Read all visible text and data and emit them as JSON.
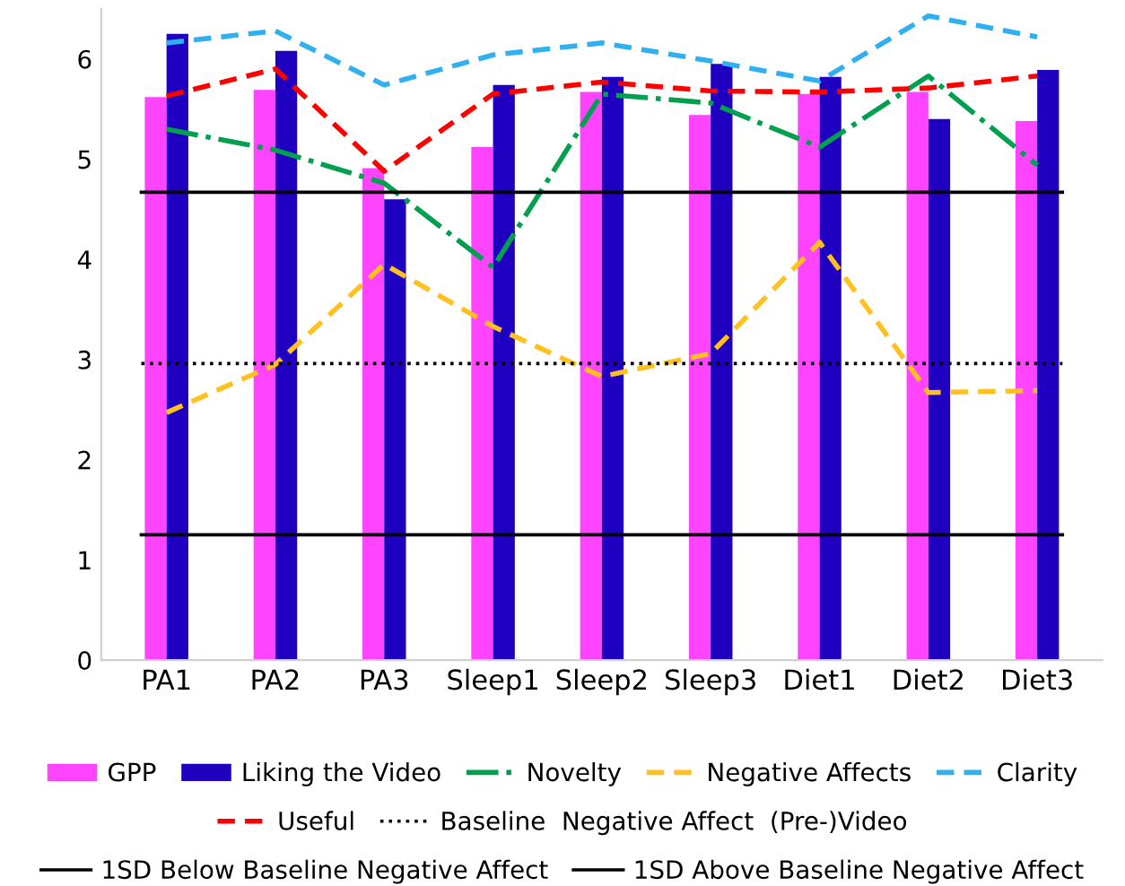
{
  "chart_data": {
    "type": "bar",
    "categories": [
      "PA1",
      "PA2",
      "PA3",
      "Sleep1",
      "Sleep2",
      "Sleep3",
      "Diet1",
      "Diet2",
      "Diet3"
    ],
    "series": [
      {
        "name": "GPP",
        "color": "#ff44ff",
        "values": [
          5.62,
          5.69,
          4.91,
          5.12,
          5.67,
          5.44,
          5.65,
          5.67,
          5.38
        ]
      },
      {
        "name": "Liking the Video",
        "color": "#2000c0",
        "values": [
          6.25,
          6.08,
          4.6,
          5.74,
          5.82,
          5.95,
          5.82,
          5.4,
          5.89
        ]
      },
      {
        "name": "Novelty",
        "type": "line",
        "color": "#00a050",
        "line_style": "dashdot",
        "values": [
          5.3,
          5.09,
          4.76,
          3.92,
          5.65,
          5.56,
          5.12,
          5.83,
          4.94
        ]
      },
      {
        "name": "Negative Affects",
        "type": "line",
        "color": "#ffc020",
        "line_style": "dashed",
        "values": [
          2.47,
          2.95,
          3.95,
          3.33,
          2.83,
          3.06,
          4.17,
          2.67,
          2.69
        ]
      },
      {
        "name": "Clarity",
        "type": "line",
        "color": "#30b0f0",
        "line_style": "dashed",
        "values": [
          6.16,
          6.28,
          5.74,
          6.04,
          6.16,
          5.98,
          5.78,
          6.43,
          6.22
        ]
      },
      {
        "name": "Useful",
        "type": "line",
        "color": "#ff0000",
        "line_style": "dashed",
        "values": [
          5.63,
          5.9,
          4.88,
          5.65,
          5.77,
          5.68,
          5.67,
          5.71,
          5.83
        ]
      }
    ],
    "ref_lines": [
      {
        "axis": "y",
        "value": 2.96,
        "label": "Baseline  Negative Affect  (Pre-)Video",
        "color": "#000000",
        "line_style": "dotted"
      },
      {
        "axis": "y",
        "value": 1.25,
        "label": "1SD Below Baseline Negative Affect",
        "color": "#000000",
        "line_style": "solid"
      },
      {
        "axis": "y",
        "value": 4.67,
        "label": "1SD Above Baseline Negative Affect",
        "color": "#000000",
        "line_style": "solid"
      }
    ],
    "ylim": [
      0,
      6.5
    ],
    "yticks": [
      0,
      1,
      2,
      3,
      4,
      5,
      6
    ],
    "grid": false,
    "legend": "bottom"
  }
}
